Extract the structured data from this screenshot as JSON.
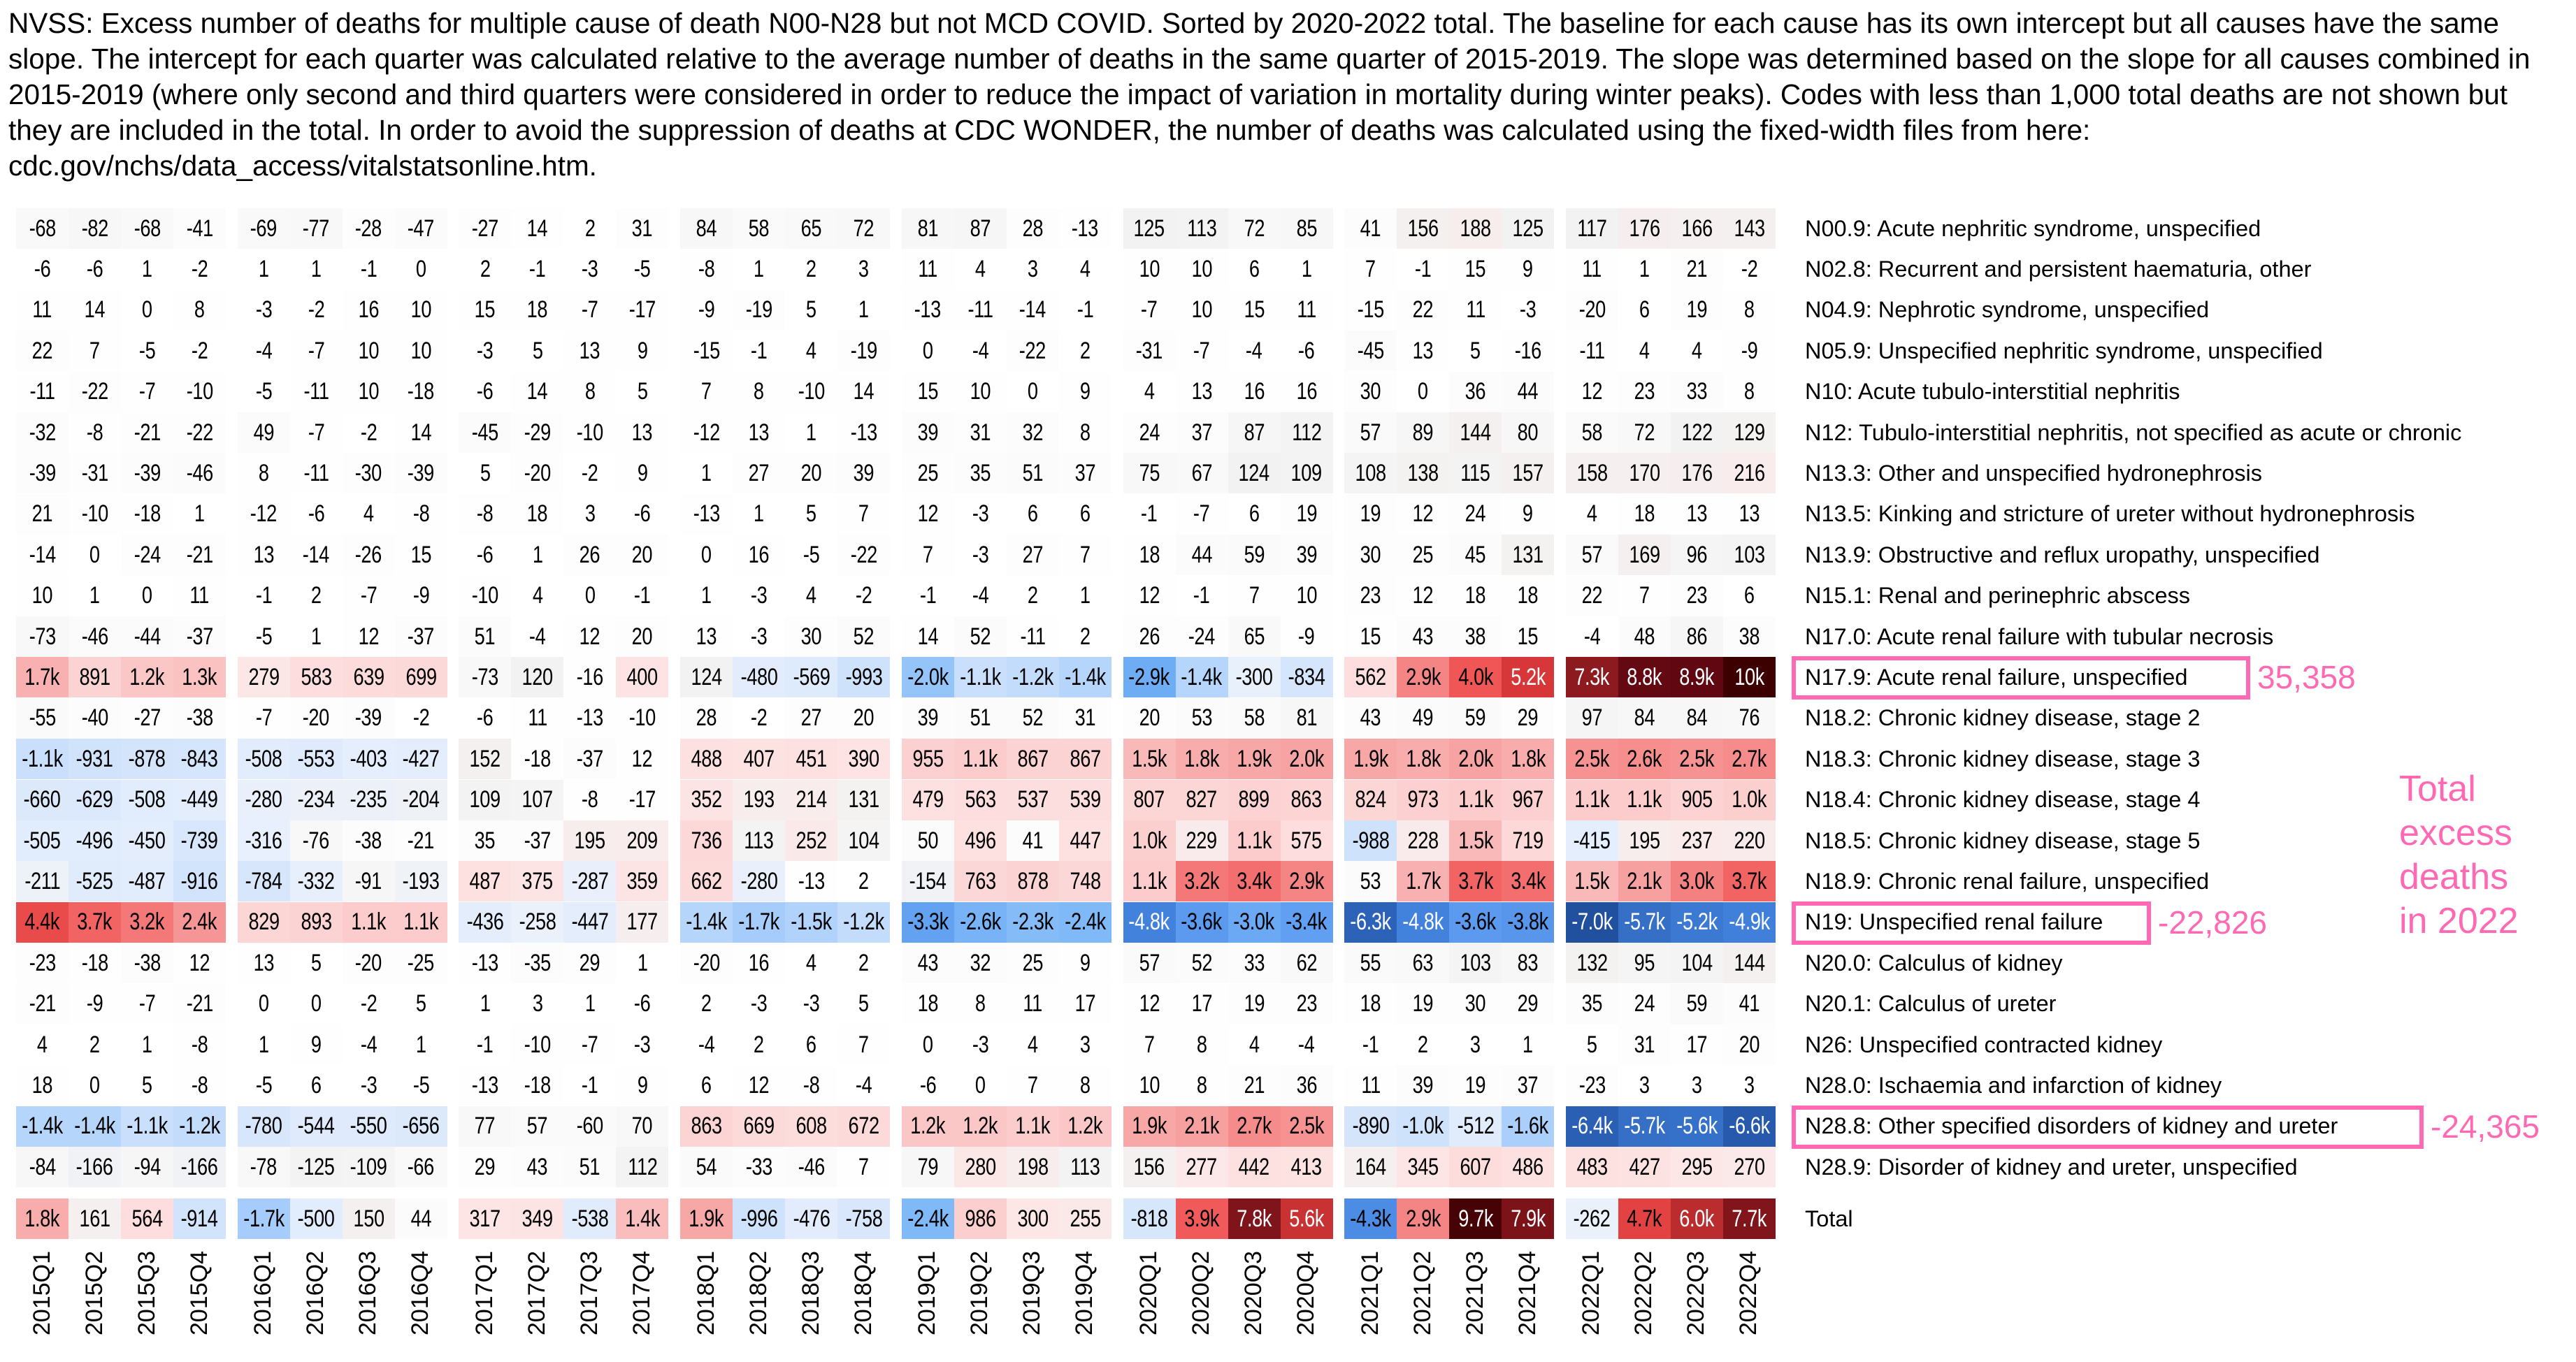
{
  "title": "NVSS: Excess number of deaths for multiple cause of death N00-N28 but not MCD COVID. Sorted by 2020-2022 total. The baseline for each cause has its own intercept but all causes have the same slope. The intercept for each quarter was calculated relative to the average number of deaths in the same quarter of 2015-2019. The slope was determined based on the slope for all causes combined in 2015-2019 (where only second and third quarters were considered in order to reduce the impact of variation in mortality during winter peaks). Codes with less than 1,000 total deaths are not shown but they are included in the total. In order to avoid the suppression of deaths at CDC WONDER, the number of deaths was calculated using the fixed-width files from here: cdc.gov/nchs/data_access/vitalstatsonline.htm.",
  "colors": {
    "highlight": "#ff69b4",
    "positive": "#e03a3a",
    "negative": "#4080dc"
  },
  "chart_data": {
    "type": "heatmap",
    "columns": [
      "2015Q1",
      "2015Q2",
      "2015Q3",
      "2015Q4",
      "2016Q1",
      "2016Q2",
      "2016Q3",
      "2016Q4",
      "2017Q1",
      "2017Q2",
      "2017Q3",
      "2017Q4",
      "2018Q1",
      "2018Q2",
      "2018Q3",
      "2018Q4",
      "2019Q1",
      "2019Q2",
      "2019Q3",
      "2019Q4",
      "2020Q1",
      "2020Q2",
      "2020Q3",
      "2020Q4",
      "2021Q1",
      "2021Q2",
      "2021Q3",
      "2021Q4",
      "2022Q1",
      "2022Q2",
      "2022Q3",
      "2022Q4"
    ],
    "rows": [
      {
        "label": "N00.9: Acute nephritic syndrome, unspecified",
        "values": [
          "-68",
          "-82",
          "-68",
          "-41",
          "-69",
          "-77",
          "-28",
          "-47",
          "-27",
          "14",
          "2",
          "31",
          "84",
          "58",
          "65",
          "72",
          "81",
          "87",
          "28",
          "-13",
          "125",
          "113",
          "72",
          "85",
          "41",
          "156",
          "188",
          "125",
          "117",
          "176",
          "166",
          "143"
        ]
      },
      {
        "label": "N02.8: Recurrent and persistent haematuria, other",
        "values": [
          "-6",
          "-6",
          "1",
          "-2",
          "1",
          "1",
          "-1",
          "0",
          "2",
          "-1",
          "-3",
          "-5",
          "-8",
          "1",
          "2",
          "3",
          "11",
          "4",
          "3",
          "4",
          "10",
          "10",
          "6",
          "1",
          "7",
          "-1",
          "15",
          "9",
          "11",
          "1",
          "21",
          "-2"
        ]
      },
      {
        "label": "N04.9: Nephrotic syndrome, unspecified",
        "values": [
          "11",
          "14",
          "0",
          "8",
          "-3",
          "-2",
          "16",
          "10",
          "15",
          "18",
          "-7",
          "-17",
          "-9",
          "-19",
          "5",
          "1",
          "-13",
          "-11",
          "-14",
          "-1",
          "-7",
          "10",
          "15",
          "11",
          "-15",
          "22",
          "11",
          "-3",
          "-20",
          "6",
          "19",
          "8"
        ]
      },
      {
        "label": "N05.9: Unspecified nephritic syndrome, unspecified",
        "values": [
          "22",
          "7",
          "-5",
          "-2",
          "-4",
          "-7",
          "10",
          "10",
          "-3",
          "5",
          "13",
          "9",
          "-15",
          "-1",
          "4",
          "-19",
          "0",
          "-4",
          "-22",
          "2",
          "-31",
          "-7",
          "-4",
          "-6",
          "-45",
          "13",
          "5",
          "-16",
          "-11",
          "4",
          "4",
          "-9"
        ]
      },
      {
        "label": "N10: Acute tubulo-interstitial nephritis",
        "values": [
          "-11",
          "-22",
          "-7",
          "-10",
          "-5",
          "-11",
          "10",
          "-18",
          "-6",
          "14",
          "8",
          "5",
          "7",
          "8",
          "-10",
          "14",
          "15",
          "10",
          "0",
          "9",
          "4",
          "13",
          "16",
          "16",
          "30",
          "0",
          "36",
          "44",
          "12",
          "23",
          "33",
          "8"
        ]
      },
      {
        "label": "N12: Tubulo-interstitial nephritis, not specified as acute or chronic",
        "values": [
          "-32",
          "-8",
          "-21",
          "-22",
          "49",
          "-7",
          "-2",
          "14",
          "-45",
          "-29",
          "-10",
          "13",
          "-12",
          "13",
          "1",
          "-13",
          "39",
          "31",
          "32",
          "8",
          "24",
          "37",
          "87",
          "112",
          "57",
          "89",
          "144",
          "80",
          "58",
          "72",
          "122",
          "129"
        ]
      },
      {
        "label": "N13.3: Other and unspecified hydronephrosis",
        "values": [
          "-39",
          "-31",
          "-39",
          "-46",
          "8",
          "-11",
          "-30",
          "-39",
          "5",
          "-20",
          "-2",
          "9",
          "1",
          "27",
          "20",
          "39",
          "25",
          "35",
          "51",
          "37",
          "75",
          "67",
          "124",
          "109",
          "108",
          "138",
          "115",
          "157",
          "158",
          "170",
          "176",
          "216"
        ]
      },
      {
        "label": "N13.5: Kinking and stricture of ureter without hydronephrosis",
        "values": [
          "21",
          "-10",
          "-18",
          "1",
          "-12",
          "-6",
          "4",
          "-8",
          "-8",
          "18",
          "3",
          "-6",
          "-13",
          "1",
          "5",
          "7",
          "12",
          "-3",
          "6",
          "6",
          "-1",
          "-7",
          "6",
          "19",
          "19",
          "12",
          "24",
          "9",
          "4",
          "18",
          "13",
          "13"
        ]
      },
      {
        "label": "N13.9: Obstructive and reflux uropathy, unspecified",
        "values": [
          "-14",
          "0",
          "-24",
          "-21",
          "13",
          "-14",
          "-26",
          "15",
          "-6",
          "1",
          "26",
          "20",
          "0",
          "16",
          "-5",
          "-22",
          "7",
          "-3",
          "27",
          "7",
          "18",
          "44",
          "59",
          "39",
          "30",
          "25",
          "45",
          "131",
          "57",
          "169",
          "96",
          "103"
        ]
      },
      {
        "label": "N15.1: Renal and perinephric abscess",
        "values": [
          "10",
          "1",
          "0",
          "11",
          "-1",
          "2",
          "-7",
          "-9",
          "-10",
          "4",
          "0",
          "-1",
          "1",
          "-3",
          "4",
          "-2",
          "-1",
          "-4",
          "2",
          "1",
          "12",
          "-1",
          "7",
          "10",
          "23",
          "12",
          "18",
          "18",
          "22",
          "7",
          "23",
          "6"
        ]
      },
      {
        "label": "N17.0: Acute renal failure with tubular necrosis",
        "values": [
          "-73",
          "-46",
          "-44",
          "-37",
          "-5",
          "1",
          "12",
          "-37",
          "51",
          "-4",
          "12",
          "20",
          "13",
          "-3",
          "30",
          "52",
          "14",
          "52",
          "-11",
          "2",
          "26",
          "-24",
          "65",
          "-9",
          "15",
          "43",
          "38",
          "15",
          "-4",
          "48",
          "86",
          "38"
        ]
      },
      {
        "label": "N17.9: Acute renal failure, unspecified",
        "values": [
          "1.7k",
          "891",
          "1.2k",
          "1.3k",
          "279",
          "583",
          "639",
          "699",
          "-73",
          "120",
          "-16",
          "400",
          "124",
          "-480",
          "-569",
          "-993",
          "-2.0k",
          "-1.1k",
          "-1.2k",
          "-1.4k",
          "-2.9k",
          "-1.4k",
          "-300",
          "-834",
          "562",
          "2.9k",
          "4.0k",
          "5.2k",
          "7.3k",
          "8.8k",
          "8.9k",
          "10k"
        ]
      },
      {
        "label": "N18.2: Chronic kidney disease, stage 2",
        "values": [
          "-55",
          "-40",
          "-27",
          "-38",
          "-7",
          "-20",
          "-39",
          "-2",
          "-6",
          "11",
          "-13",
          "-10",
          "28",
          "-2",
          "27",
          "20",
          "39",
          "51",
          "52",
          "31",
          "20",
          "53",
          "58",
          "81",
          "43",
          "49",
          "59",
          "29",
          "97",
          "84",
          "84",
          "76"
        ]
      },
      {
        "label": "N18.3: Chronic kidney disease, stage 3",
        "values": [
          "-1.1k",
          "-931",
          "-878",
          "-843",
          "-508",
          "-553",
          "-403",
          "-427",
          "152",
          "-18",
          "-37",
          "12",
          "488",
          "407",
          "451",
          "390",
          "955",
          "1.1k",
          "867",
          "867",
          "1.5k",
          "1.8k",
          "1.9k",
          "2.0k",
          "1.9k",
          "1.8k",
          "2.0k",
          "1.8k",
          "2.5k",
          "2.6k",
          "2.5k",
          "2.7k"
        ]
      },
      {
        "label": "N18.4: Chronic kidney disease, stage 4",
        "values": [
          "-660",
          "-629",
          "-508",
          "-449",
          "-280",
          "-234",
          "-235",
          "-204",
          "109",
          "107",
          "-8",
          "-17",
          "352",
          "193",
          "214",
          "131",
          "479",
          "563",
          "537",
          "539",
          "807",
          "827",
          "899",
          "863",
          "824",
          "973",
          "1.1k",
          "967",
          "1.1k",
          "1.1k",
          "905",
          "1.0k"
        ]
      },
      {
        "label": "N18.5: Chronic kidney disease, stage 5",
        "values": [
          "-505",
          "-496",
          "-450",
          "-739",
          "-316",
          "-76",
          "-38",
          "-21",
          "35",
          "-37",
          "195",
          "209",
          "736",
          "113",
          "252",
          "104",
          "50",
          "496",
          "41",
          "447",
          "1.0k",
          "229",
          "1.1k",
          "575",
          "-988",
          "228",
          "1.5k",
          "719",
          "-415",
          "195",
          "237",
          "220"
        ]
      },
      {
        "label": "N18.9: Chronic renal failure, unspecified",
        "values": [
          "-211",
          "-525",
          "-487",
          "-916",
          "-784",
          "-332",
          "-91",
          "-193",
          "487",
          "375",
          "-287",
          "359",
          "662",
          "-280",
          "-13",
          "2",
          "-154",
          "763",
          "878",
          "748",
          "1.1k",
          "3.2k",
          "3.4k",
          "2.9k",
          "53",
          "1.7k",
          "3.7k",
          "3.4k",
          "1.5k",
          "2.1k",
          "3.0k",
          "3.7k"
        ]
      },
      {
        "label": "N19: Unspecified renal failure",
        "values": [
          "4.4k",
          "3.7k",
          "3.2k",
          "2.4k",
          "829",
          "893",
          "1.1k",
          "1.1k",
          "-436",
          "-258",
          "-447",
          "177",
          "-1.4k",
          "-1.7k",
          "-1.5k",
          "-1.2k",
          "-3.3k",
          "-2.6k",
          "-2.3k",
          "-2.4k",
          "-4.8k",
          "-3.6k",
          "-3.0k",
          "-3.4k",
          "-6.3k",
          "-4.8k",
          "-3.6k",
          "-3.8k",
          "-7.0k",
          "-5.7k",
          "-5.2k",
          "-4.9k"
        ]
      },
      {
        "label": "N20.0: Calculus of kidney",
        "values": [
          "-23",
          "-18",
          "-38",
          "12",
          "13",
          "5",
          "-20",
          "-25",
          "-13",
          "-35",
          "29",
          "1",
          "-20",
          "16",
          "4",
          "2",
          "43",
          "32",
          "25",
          "9",
          "57",
          "52",
          "33",
          "62",
          "55",
          "63",
          "103",
          "83",
          "132",
          "95",
          "104",
          "144"
        ]
      },
      {
        "label": "N20.1: Calculus of ureter",
        "values": [
          "-21",
          "-9",
          "-7",
          "-21",
          "0",
          "0",
          "-2",
          "5",
          "1",
          "3",
          "1",
          "-6",
          "2",
          "-3",
          "-3",
          "5",
          "18",
          "8",
          "11",
          "17",
          "12",
          "17",
          "19",
          "23",
          "18",
          "19",
          "30",
          "29",
          "35",
          "24",
          "59",
          "41"
        ]
      },
      {
        "label": "N26: Unspecified contracted kidney",
        "values": [
          "4",
          "2",
          "1",
          "-8",
          "1",
          "9",
          "-4",
          "1",
          "-1",
          "-10",
          "-7",
          "-3",
          "-4",
          "2",
          "6",
          "7",
          "0",
          "-3",
          "4",
          "3",
          "7",
          "8",
          "4",
          "-4",
          "-1",
          "2",
          "3",
          "1",
          "5",
          "31",
          "17",
          "20"
        ]
      },
      {
        "label": "N28.0: Ischaemia and infarction of kidney",
        "values": [
          "18",
          "0",
          "5",
          "-8",
          "-5",
          "6",
          "-3",
          "-5",
          "-13",
          "-18",
          "-1",
          "9",
          "6",
          "12",
          "-8",
          "-4",
          "-6",
          "0",
          "7",
          "8",
          "10",
          "8",
          "21",
          "36",
          "11",
          "39",
          "19",
          "37",
          "-23",
          "3",
          "3",
          "3"
        ]
      },
      {
        "label": "N28.8: Other specified disorders of kidney and ureter",
        "values": [
          "-1.4k",
          "-1.4k",
          "-1.1k",
          "-1.2k",
          "-780",
          "-544",
          "-550",
          "-656",
          "77",
          "57",
          "-60",
          "70",
          "863",
          "669",
          "608",
          "672",
          "1.2k",
          "1.2k",
          "1.1k",
          "1.2k",
          "1.9k",
          "2.1k",
          "2.7k",
          "2.5k",
          "-890",
          "-1.0k",
          "-512",
          "-1.6k",
          "-6.4k",
          "-5.7k",
          "-5.6k",
          "-6.6k"
        ]
      },
      {
        "label": "N28.9: Disorder of kidney and ureter, unspecified",
        "values": [
          "-84",
          "-166",
          "-94",
          "-166",
          "-78",
          "-125",
          "-109",
          "-66",
          "29",
          "43",
          "51",
          "112",
          "54",
          "-33",
          "-46",
          "7",
          "79",
          "280",
          "198",
          "113",
          "156",
          "277",
          "442",
          "413",
          "164",
          "345",
          "607",
          "486",
          "483",
          "427",
          "295",
          "270"
        ]
      }
    ],
    "total": {
      "label": "Total",
      "values": [
        "1.8k",
        "161",
        "564",
        "-914",
        "-1.7k",
        "-500",
        "150",
        "44",
        "317",
        "349",
        "-538",
        "1.4k",
        "1.9k",
        "-996",
        "-476",
        "-758",
        "-2.4k",
        "986",
        "300",
        "255",
        "-818",
        "3.9k",
        "7.8k",
        "5.6k",
        "-4.3k",
        "2.9k",
        "9.7k",
        "7.9k",
        "-262",
        "4.7k",
        "6.0k",
        "7.7k"
      ]
    },
    "highlights": [
      {
        "row": 11,
        "text": "35,358"
      },
      {
        "row": 17,
        "text": "-22,826"
      },
      {
        "row": 22,
        "text": "-24,365"
      }
    ],
    "side_note": [
      "Total",
      "excess",
      "deaths",
      "in 2022"
    ]
  }
}
